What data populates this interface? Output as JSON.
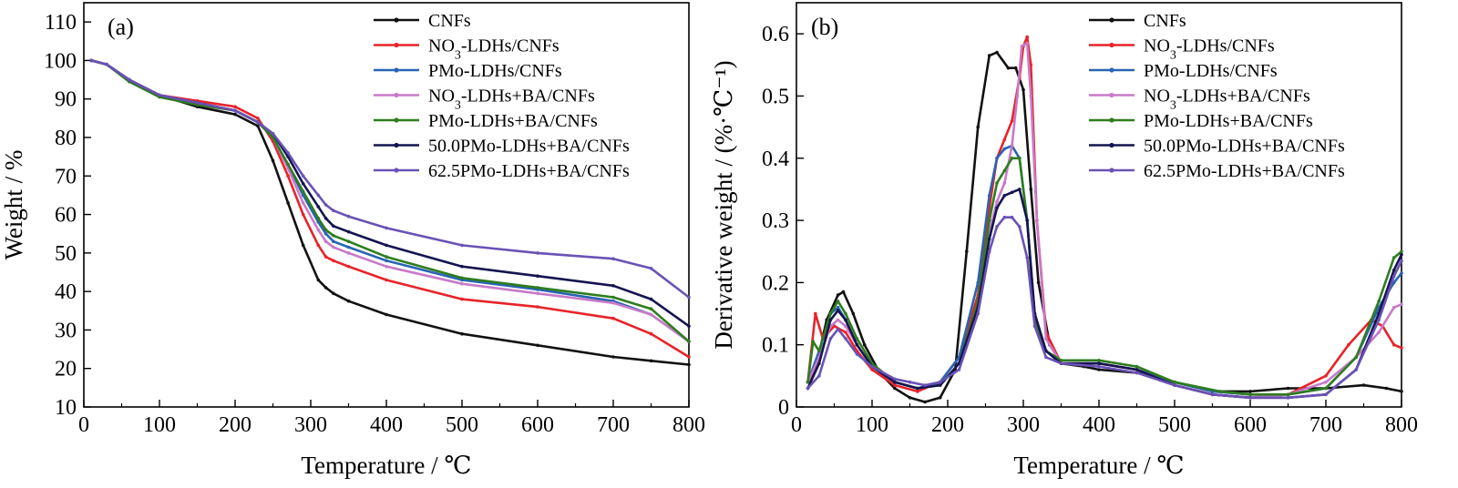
{
  "colors": {
    "CNFs": "#111111",
    "NO3": "#e8232a",
    "PMo": "#2864b4",
    "NO3BA": "#c87ac8",
    "PMoBA": "#2e7d1e",
    "p50": "#141450",
    "p625": "#6a52b4"
  },
  "chart_data": [
    {
      "type": "line",
      "panel_label": "(a)",
      "xlabel": "Temperature / ℃",
      "ylabel": "Weight / %",
      "xlim": [
        0,
        800
      ],
      "ylim": [
        10,
        115
      ],
      "xticks": [
        "0",
        "100",
        "200",
        "300",
        "400",
        "500",
        "600",
        "700",
        "800"
      ],
      "yticks": [
        "10",
        "20",
        "30",
        "40",
        "50",
        "60",
        "70",
        "80",
        "90",
        "100",
        "110"
      ],
      "legend_position": "top-right",
      "grid": false,
      "series": [
        {
          "name": "CNFs",
          "color_key": "CNFs",
          "x": [
            10,
            30,
            60,
            100,
            150,
            200,
            230,
            250,
            270,
            290,
            310,
            320,
            330,
            350,
            400,
            500,
            600,
            700,
            750,
            800
          ],
          "y": [
            100,
            99,
            95,
            91,
            88,
            86,
            83,
            74,
            63,
            52,
            43,
            41,
            39.5,
            37.5,
            34,
            29,
            26,
            23,
            22,
            21
          ]
        },
        {
          "name": "NO3-LDHs/CNFs",
          "name_main": "NO",
          "name_sub": "3",
          "name_rest": "-LDHs/CNFs",
          "color_key": "NO3",
          "x": [
            10,
            30,
            60,
            100,
            150,
            200,
            230,
            250,
            270,
            290,
            310,
            320,
            330,
            350,
            400,
            500,
            600,
            700,
            750,
            800
          ],
          "y": [
            100,
            99,
            95,
            91,
            89.5,
            88,
            85,
            79,
            70,
            60,
            52,
            49,
            48,
            46.5,
            43,
            38,
            36,
            33,
            29,
            23
          ]
        },
        {
          "name": "PMo-LDHs/CNFs",
          "color_key": "PMo",
          "x": [
            10,
            30,
            60,
            100,
            150,
            200,
            230,
            250,
            270,
            290,
            310,
            320,
            330,
            350,
            400,
            500,
            600,
            700,
            750,
            800
          ],
          "y": [
            100,
            99,
            95,
            91,
            89,
            87,
            84,
            80,
            73,
            65,
            58,
            55,
            53,
            51.5,
            48,
            43,
            40.5,
            37.5,
            34,
            27
          ]
        },
        {
          "name": "NO3-LDHs+BA/CNFs",
          "name_main": "NO",
          "name_sub": "3",
          "name_rest": "-LDHs+BA/CNFs",
          "color_key": "NO3BA",
          "x": [
            10,
            30,
            60,
            100,
            150,
            200,
            230,
            250,
            270,
            290,
            310,
            320,
            330,
            350,
            400,
            500,
            600,
            700,
            750,
            800
          ],
          "y": [
            100,
            99,
            95,
            91,
            89,
            87,
            84,
            80,
            72,
            63,
            56,
            53,
            51.5,
            50,
            46.5,
            42,
            39.5,
            37,
            34,
            27
          ]
        },
        {
          "name": "PMo-LDHs+BA/CNFs",
          "color_key": "PMoBA",
          "x": [
            10,
            30,
            60,
            100,
            150,
            200,
            230,
            250,
            270,
            290,
            310,
            320,
            330,
            350,
            400,
            500,
            600,
            700,
            750,
            800
          ],
          "y": [
            100,
            99,
            94.5,
            90.5,
            88.5,
            87,
            84,
            80,
            73,
            66,
            59,
            56,
            54.5,
            53,
            49,
            43.5,
            41,
            38.5,
            35.5,
            27
          ]
        },
        {
          "name": "50.0PMo-LDHs+BA/CNFs",
          "color_key": "p50",
          "x": [
            10,
            30,
            60,
            100,
            150,
            200,
            230,
            250,
            270,
            290,
            310,
            320,
            330,
            350,
            400,
            500,
            600,
            700,
            750,
            800
          ],
          "y": [
            100,
            99,
            95,
            91,
            89,
            87,
            84,
            81,
            75,
            68,
            62,
            59,
            57,
            55.5,
            52,
            46.5,
            44,
            41.5,
            38,
            31
          ]
        },
        {
          "name": "62.5PMo-LDHs+BA/CNFs",
          "color_key": "p625",
          "x": [
            10,
            30,
            60,
            100,
            150,
            200,
            230,
            250,
            270,
            290,
            310,
            320,
            330,
            350,
            400,
            500,
            600,
            700,
            750,
            800
          ],
          "y": [
            100,
            99,
            95,
            91,
            89,
            87,
            84,
            81,
            76,
            70,
            65,
            62.5,
            61,
            59.5,
            56.5,
            52,
            50,
            48.5,
            46,
            38.5
          ]
        }
      ]
    },
    {
      "type": "line",
      "panel_label": "(b)",
      "xlabel": "Temperature / ℃",
      "ylabel": "Derivative weight / (%·℃⁻¹)",
      "xlim": [
        0,
        800
      ],
      "ylim": [
        0,
        0.65
      ],
      "xticks": [
        "0",
        "100",
        "200",
        "300",
        "400",
        "500",
        "600",
        "700",
        "800"
      ],
      "yticks": [
        "0",
        "0.1",
        "0.2",
        "0.3",
        "0.4",
        "0.5",
        "0.6"
      ],
      "legend_position": "top-right",
      "grid": false,
      "series": [
        {
          "name": "CNFs",
          "color_key": "CNFs",
          "x": [
            15,
            25,
            40,
            55,
            62,
            75,
            90,
            110,
            130,
            150,
            170,
            190,
            210,
            225,
            240,
            255,
            265,
            280,
            290,
            300,
            310,
            320,
            335,
            350,
            380,
            400,
            450,
            500,
            550,
            600,
            650,
            700,
            750,
            780,
            800
          ],
          "y": [
            0.04,
            0.06,
            0.14,
            0.18,
            0.185,
            0.15,
            0.1,
            0.055,
            0.03,
            0.015,
            0.008,
            0.015,
            0.06,
            0.25,
            0.45,
            0.565,
            0.57,
            0.545,
            0.545,
            0.51,
            0.35,
            0.2,
            0.1,
            0.07,
            0.065,
            0.06,
            0.055,
            0.04,
            0.025,
            0.025,
            0.03,
            0.03,
            0.035,
            0.03,
            0.025
          ]
        },
        {
          "name": "NO3-LDHs/CNFs",
          "name_main": "NO",
          "name_sub": "3",
          "name_rest": "-LDHs/CNFs",
          "color_key": "NO3",
          "x": [
            15,
            25,
            35,
            50,
            65,
            80,
            100,
            130,
            160,
            190,
            215,
            240,
            255,
            265,
            275,
            285,
            295,
            300,
            305,
            310,
            318,
            330,
            350,
            400,
            450,
            500,
            550,
            600,
            650,
            700,
            730,
            760,
            775,
            790,
            800
          ],
          "y": [
            0.04,
            0.15,
            0.11,
            0.13,
            0.12,
            0.09,
            0.06,
            0.035,
            0.025,
            0.04,
            0.08,
            0.18,
            0.32,
            0.4,
            0.43,
            0.46,
            0.53,
            0.58,
            0.595,
            0.55,
            0.3,
            0.12,
            0.07,
            0.07,
            0.06,
            0.035,
            0.02,
            0.015,
            0.02,
            0.05,
            0.1,
            0.14,
            0.13,
            0.1,
            0.095
          ]
        },
        {
          "name": "PMo-LDHs/CNFs",
          "name_main": "PMo-LDHs/CNFs",
          "name_sub": "",
          "name_rest": "",
          "color_key": "PMo",
          "x": [
            15,
            30,
            45,
            55,
            65,
            80,
            100,
            130,
            160,
            190,
            215,
            240,
            255,
            265,
            275,
            285,
            295,
            305,
            315,
            330,
            350,
            400,
            450,
            500,
            550,
            600,
            650,
            700,
            740,
            770,
            790,
            800
          ],
          "y": [
            0.04,
            0.09,
            0.15,
            0.16,
            0.14,
            0.1,
            0.065,
            0.04,
            0.03,
            0.04,
            0.08,
            0.2,
            0.34,
            0.4,
            0.415,
            0.42,
            0.4,
            0.3,
            0.15,
            0.09,
            0.07,
            0.07,
            0.06,
            0.04,
            0.025,
            0.02,
            0.02,
            0.03,
            0.08,
            0.16,
            0.2,
            0.215
          ]
        },
        {
          "name": "NO3-LDHs+BA/CNFs",
          "name_main": "NO",
          "name_sub": "3",
          "name_rest": "-LDHs+BA/CNFs",
          "color_key": "NO3BA",
          "x": [
            15,
            30,
            45,
            55,
            65,
            80,
            100,
            130,
            160,
            190,
            215,
            240,
            255,
            265,
            275,
            285,
            292,
            298,
            305,
            310,
            318,
            330,
            350,
            400,
            450,
            500,
            550,
            600,
            650,
            700,
            740,
            770,
            790,
            800
          ],
          "y": [
            0.04,
            0.08,
            0.13,
            0.14,
            0.13,
            0.1,
            0.065,
            0.04,
            0.03,
            0.035,
            0.07,
            0.16,
            0.28,
            0.33,
            0.36,
            0.42,
            0.5,
            0.58,
            0.585,
            0.5,
            0.3,
            0.11,
            0.07,
            0.07,
            0.06,
            0.035,
            0.02,
            0.015,
            0.02,
            0.04,
            0.08,
            0.12,
            0.16,
            0.165
          ]
        },
        {
          "name": "PMo-LDHs+BA/CNFs",
          "color_key": "PMoBA",
          "x": [
            15,
            22,
            30,
            45,
            55,
            65,
            80,
            100,
            130,
            160,
            190,
            215,
            240,
            255,
            265,
            275,
            285,
            295,
            305,
            315,
            330,
            350,
            400,
            450,
            500,
            560,
            600,
            650,
            700,
            740,
            770,
            790,
            800
          ],
          "y": [
            0.04,
            0.105,
            0.09,
            0.15,
            0.17,
            0.15,
            0.11,
            0.07,
            0.04,
            0.03,
            0.035,
            0.07,
            0.17,
            0.3,
            0.36,
            0.38,
            0.4,
            0.4,
            0.3,
            0.14,
            0.09,
            0.075,
            0.075,
            0.065,
            0.04,
            0.025,
            0.02,
            0.02,
            0.03,
            0.08,
            0.17,
            0.24,
            0.25
          ]
        },
        {
          "name": "50.0PMo-LDHs+BA/CNFs",
          "color_key": "p50",
          "x": [
            15,
            30,
            45,
            55,
            65,
            80,
            100,
            130,
            160,
            190,
            215,
            240,
            255,
            265,
            275,
            285,
            295,
            305,
            315,
            330,
            350,
            400,
            450,
            500,
            550,
            600,
            650,
            700,
            740,
            770,
            790,
            800
          ],
          "y": [
            0.03,
            0.07,
            0.14,
            0.155,
            0.14,
            0.1,
            0.065,
            0.04,
            0.03,
            0.035,
            0.07,
            0.16,
            0.27,
            0.32,
            0.34,
            0.345,
            0.35,
            0.3,
            0.15,
            0.09,
            0.07,
            0.07,
            0.06,
            0.035,
            0.02,
            0.015,
            0.015,
            0.02,
            0.06,
            0.15,
            0.22,
            0.245
          ]
        },
        {
          "name": "62.5PMo-LDHs+BA/CNFs",
          "color_key": "p625",
          "x": [
            15,
            30,
            45,
            55,
            65,
            80,
            100,
            130,
            150,
            170,
            190,
            215,
            240,
            255,
            265,
            275,
            285,
            295,
            305,
            315,
            330,
            350,
            400,
            450,
            500,
            550,
            600,
            650,
            700,
            740,
            770,
            790,
            800
          ],
          "y": [
            0.03,
            0.05,
            0.11,
            0.125,
            0.11,
            0.085,
            0.065,
            0.045,
            0.04,
            0.035,
            0.04,
            0.06,
            0.15,
            0.25,
            0.29,
            0.305,
            0.305,
            0.29,
            0.24,
            0.13,
            0.08,
            0.07,
            0.065,
            0.055,
            0.035,
            0.02,
            0.015,
            0.015,
            0.02,
            0.06,
            0.14,
            0.21,
            0.235
          ]
        }
      ]
    }
  ]
}
